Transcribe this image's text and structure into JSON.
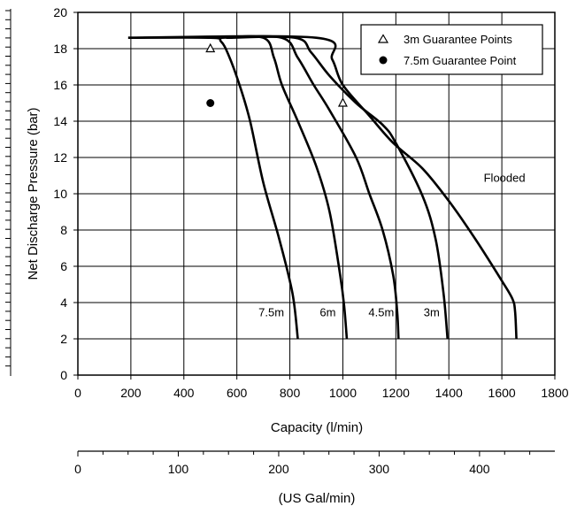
{
  "chart_data": {
    "type": "line",
    "xlabel": "Capacity (l/min)",
    "ylabel": "Net Discharge Pressure (bar)",
    "secondary_xlabel": "(US Gal/min)",
    "xlim": [
      0,
      1800
    ],
    "ylim": [
      0,
      20
    ],
    "x_ticks": [
      "0",
      "200",
      "400",
      "600",
      "800",
      "1000",
      "1200",
      "1400",
      "1600",
      "1800"
    ],
    "y_ticks": [
      "0",
      "2",
      "4",
      "6",
      "8",
      "10",
      "12",
      "14",
      "16",
      "18",
      "20"
    ],
    "secondary_x_ticks": [
      "0",
      "100",
      "200",
      "300",
      "400"
    ],
    "secondary_x_values": [
      0,
      100,
      200,
      300,
      400
    ],
    "secondary_xlim": [
      0,
      475
    ],
    "grid": true,
    "legend": {
      "placement": "top-right",
      "entries": [
        {
          "label": "3m Guarantee Points",
          "marker": "open-triangle"
        },
        {
          "label": "7.5m Guarantee Point",
          "marker": "filled-circle"
        }
      ]
    },
    "series": [
      {
        "name": "Flooded",
        "label_at": [
          1610,
          10.9
        ],
        "points": [
          [
            190,
            18.6
          ],
          [
            900,
            18.6
          ],
          [
            960,
            17.4
          ],
          [
            1000,
            16.0
          ],
          [
            1100,
            14.3
          ],
          [
            1190,
            12.8
          ],
          [
            1300,
            11.4
          ],
          [
            1400,
            9.6
          ],
          [
            1500,
            7.5
          ],
          [
            1600,
            5.2
          ],
          [
            1640,
            4.2
          ],
          [
            1650,
            3.5
          ],
          [
            1655,
            2.0
          ]
        ]
      },
      {
        "name": "3m",
        "label_at": [
          1335,
          3.5
        ],
        "points": [
          [
            560,
            18.6
          ],
          [
            820,
            18.6
          ],
          [
            880,
            17.8
          ],
          [
            950,
            16.5
          ],
          [
            1050,
            15.0
          ],
          [
            1150,
            13.8
          ],
          [
            1200,
            12.8
          ],
          [
            1300,
            9.9
          ],
          [
            1350,
            7.5
          ],
          [
            1380,
            4.5
          ],
          [
            1395,
            2.0
          ]
        ]
      },
      {
        "name": "4.5m",
        "label_at": [
          1145,
          3.5
        ],
        "points": [
          [
            560,
            18.6
          ],
          [
            770,
            18.6
          ],
          [
            830,
            17.5
          ],
          [
            890,
            16.0
          ],
          [
            950,
            14.6
          ],
          [
            1050,
            12.0
          ],
          [
            1100,
            10.0
          ],
          [
            1150,
            8.0
          ],
          [
            1190,
            5.5
          ],
          [
            1205,
            3.5
          ],
          [
            1210,
            2.0
          ]
        ]
      },
      {
        "name": "6m",
        "label_at": [
          943,
          3.5
        ],
        "points": [
          [
            540,
            18.6
          ],
          [
            700,
            18.6
          ],
          [
            740,
            17.5
          ],
          [
            770,
            16.0
          ],
          [
            830,
            14.0
          ],
          [
            900,
            11.5
          ],
          [
            950,
            9.0
          ],
          [
            990,
            5.5
          ],
          [
            1005,
            3.8
          ],
          [
            1015,
            2.0
          ]
        ]
      },
      {
        "name": "7.5m",
        "label_at": [
          730,
          3.5
        ],
        "points": [
          [
            190,
            18.6
          ],
          [
            500,
            18.6
          ],
          [
            540,
            18.4
          ],
          [
            570,
            17.6
          ],
          [
            610,
            16.0
          ],
          [
            650,
            14.0
          ],
          [
            700,
            10.6
          ],
          [
            760,
            7.5
          ],
          [
            810,
            4.5
          ],
          [
            830,
            2.0
          ]
        ]
      }
    ],
    "guarantee_points": [
      {
        "type": "3m",
        "x": 500,
        "y": 18.0
      },
      {
        "type": "3m",
        "x": 1000,
        "y": 15.0
      },
      {
        "type": "7.5m",
        "x": 500,
        "y": 15.0
      }
    ]
  }
}
